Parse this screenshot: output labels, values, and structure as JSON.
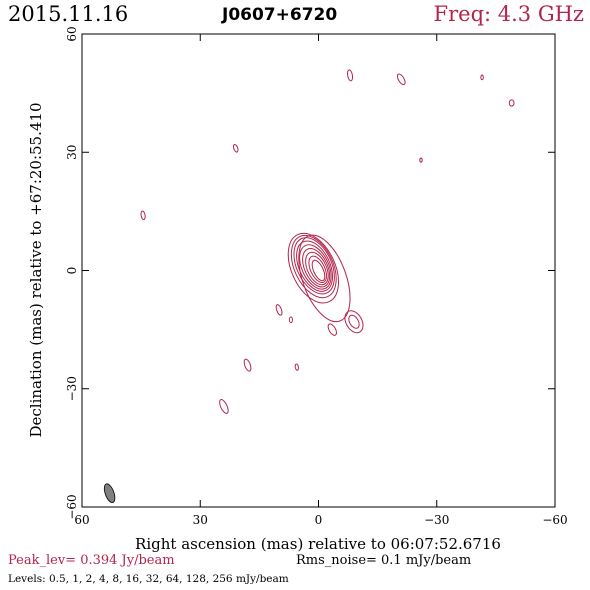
{
  "header": {
    "date": "2015.11.16",
    "source": "J0607+6720",
    "frequency": "Freq: 4.3 GHz"
  },
  "footer": {
    "peak": "Peak_lev=  0.394 Jy/beam",
    "rms": "Rms_noise=  0.1 mJy/beam",
    "levels": "Levels: 0.5,    1,    2,    4,    8,   16,   32,   64, 128, 256 mJy/beam"
  },
  "colors": {
    "contour": "#b3244b",
    "beam": "#808080",
    "axis": "#000000"
  },
  "chart_data": {
    "type": "contour",
    "xlabel": "Right ascension (mas) relative to 06:07:52.6716",
    "ylabel": "Declination (mas) relative to +67:20:55.410",
    "xlim": [
      60,
      -60
    ],
    "ylim": [
      -60,
      60
    ],
    "x_ticks": [
      60,
      30,
      0,
      -30,
      -60
    ],
    "y_ticks": [
      60,
      30,
      0,
      -30,
      -60
    ],
    "x_tick_labels": [
      "60",
      "30",
      "0",
      "−30",
      "−60"
    ],
    "y_tick_labels": [
      "60",
      "30",
      "0",
      "−30",
      "−60"
    ],
    "beam": {
      "ra": 53,
      "dec": -56.5,
      "major_mas": 5.0,
      "minor_mas": 2.2,
      "pa_deg": 20
    },
    "core": {
      "ra": 0.5,
      "dec": 0.5,
      "levels": [
        {
          "ra": 0.0,
          "dec": 0.0,
          "a": 2.8,
          "b": 1.2
        },
        {
          "ra": 0.2,
          "dec": 0.3,
          "a": 3.6,
          "b": 1.8
        },
        {
          "ra": 0.4,
          "dec": 0.5,
          "a": 4.4,
          "b": 2.4
        },
        {
          "ra": 0.6,
          "dec": 0.7,
          "a": 5.2,
          "b": 2.9
        },
        {
          "ra": 0.8,
          "dec": 0.9,
          "a": 6.0,
          "b": 3.4
        },
        {
          "ra": 1.0,
          "dec": 1.1,
          "a": 6.8,
          "b": 3.9
        },
        {
          "ra": 1.1,
          "dec": 1.2,
          "a": 7.6,
          "b": 4.4
        },
        {
          "ra": 1.2,
          "dec": 1.0,
          "a": 8.4,
          "b": 4.9
        },
        {
          "ra": 1.3,
          "dec": 0.6,
          "a": 9.4,
          "b": 5.5
        }
      ],
      "pa_deg": 25
    },
    "components": [
      {
        "ra": -8,
        "dec": 49.5,
        "a": 1.4,
        "b": 0.6,
        "pa": 10
      },
      {
        "ra": -21,
        "dec": 48.5,
        "a": 1.5,
        "b": 0.7,
        "pa": 30
      },
      {
        "ra": -41.5,
        "dec": 49,
        "a": 0.6,
        "b": 0.3,
        "pa": 0
      },
      {
        "ra": -49,
        "dec": 42.5,
        "a": 0.8,
        "b": 0.6,
        "pa": 0
      },
      {
        "ra": 21,
        "dec": 31,
        "a": 1.0,
        "b": 0.5,
        "pa": 20
      },
      {
        "ra": -26,
        "dec": 28,
        "a": 0.5,
        "b": 0.3,
        "pa": 0
      },
      {
        "ra": 44.5,
        "dec": 14,
        "a": 1.1,
        "b": 0.5,
        "pa": 10
      },
      {
        "ra": 10,
        "dec": -10,
        "a": 1.4,
        "b": 0.6,
        "pa": 20
      },
      {
        "ra": 7,
        "dec": -12.5,
        "a": 0.7,
        "b": 0.4,
        "pa": 0
      },
      {
        "ra": -3.5,
        "dec": -15,
        "a": 1.6,
        "b": 0.8,
        "pa": 30
      },
      {
        "ra": -9,
        "dec": -13,
        "a": 1.8,
        "b": 1.1,
        "pa": 30
      },
      {
        "ra": -9,
        "dec": -13,
        "a": 3.0,
        "b": 2.0,
        "pa": 30
      },
      {
        "ra": 18,
        "dec": -24,
        "a": 1.6,
        "b": 0.7,
        "pa": 20
      },
      {
        "ra": 5.5,
        "dec": -24.5,
        "a": 0.8,
        "b": 0.4,
        "pa": 10
      },
      {
        "ra": 24,
        "dec": -34.5,
        "a": 1.9,
        "b": 0.8,
        "pa": 25
      }
    ]
  }
}
